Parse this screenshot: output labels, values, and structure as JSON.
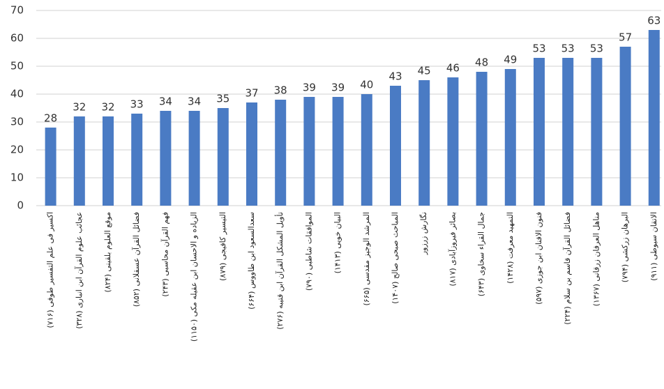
{
  "chart_data": {
    "type": "bar",
    "categories": [
      "اکسیر فی علم التفسیر طوفی (۷۱۶)",
      "عجائب علوم القرآن ابن انباری (۳۲۸)",
      "موقع العلوم بلقینی (۸۲۴)",
      "فضائل القرآن عسقلانی (۸۵۲)",
      "فهم القرآن محاسبی (۲۴۳)",
      "الزیاده و الاحسان ابن عقیله مکی (۱۱۵۰)",
      "التیسیر کافیجی (۸۷۹)",
      "سعدالسعود ابن طاووس (۶۶۴)",
      "تأویل المشکل القرآن ابن قتیبه (۲۷۶)",
      "الموافقات شاطبی (۷۹۰)",
      "البیان خویی (۱۴۱۳)",
      "المرشد الوجیز مقدسی (۶۶۵)",
      "المباحث صبحی صالح (۱۴۰۷)",
      "نگارش زرزور",
      "بصائر فیروزآبادی (۸۱۷)",
      "جمال القراء سخاوی (۶۴۳)",
      "التمهید معرفت (۱۴۲۸)",
      "فنون الافنان ابن جوزی (۵۹۷)",
      "فضائل القرآن قاسم بن سلام (۲۲۴)",
      "مناهل العرفان زرقانی (۱۳۶۷)",
      "البرهان زرکشی (۷۹۴)",
      "الاتقان سیوطی (۹۱۱)"
    ],
    "values": [
      28,
      32,
      32,
      33,
      34,
      34,
      35,
      37,
      38,
      39,
      39,
      40,
      43,
      45,
      46,
      48,
      49,
      53,
      53,
      53,
      57,
      63
    ],
    "color": "#4a7bc4",
    "ylim": [
      0,
      70
    ],
    "yticks": [
      0,
      10,
      20,
      30,
      40,
      50,
      60,
      70
    ],
    "grid": true
  }
}
